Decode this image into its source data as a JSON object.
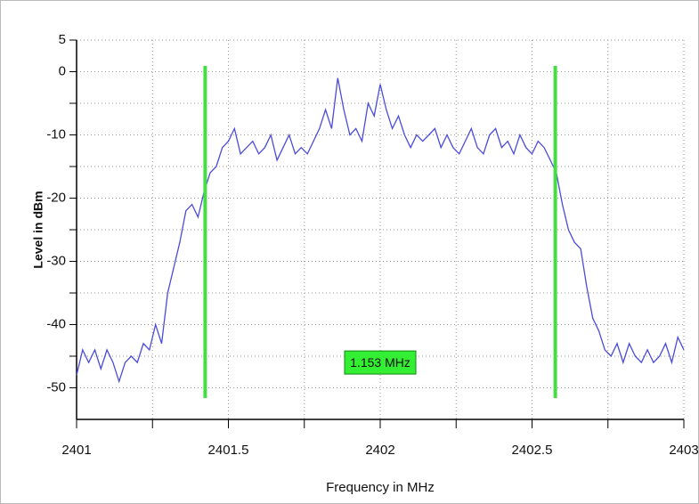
{
  "chart_data": {
    "type": "line",
    "x_label": "Frequency in MHz",
    "y_label": "Level in dBm",
    "x": [
      2401.0,
      2401.02,
      2401.04,
      2401.06,
      2401.08,
      2401.1,
      2401.12,
      2401.14,
      2401.16,
      2401.18,
      2401.2,
      2401.22,
      2401.24,
      2401.26,
      2401.28,
      2401.3,
      2401.32,
      2401.34,
      2401.36,
      2401.38,
      2401.4,
      2401.42,
      2401.44,
      2401.46,
      2401.48,
      2401.5,
      2401.52,
      2401.54,
      2401.56,
      2401.58,
      2401.6,
      2401.62,
      2401.64,
      2401.66,
      2401.68,
      2401.7,
      2401.72,
      2401.74,
      2401.76,
      2401.78,
      2401.8,
      2401.82,
      2401.84,
      2401.86,
      2401.88,
      2401.9,
      2401.92,
      2401.94,
      2401.96,
      2401.98,
      2402.0,
      2402.02,
      2402.04,
      2402.06,
      2402.08,
      2402.1,
      2402.12,
      2402.14,
      2402.16,
      2402.18,
      2402.2,
      2402.22,
      2402.24,
      2402.26,
      2402.28,
      2402.3,
      2402.32,
      2402.34,
      2402.36,
      2402.38,
      2402.4,
      2402.42,
      2402.44,
      2402.46,
      2402.48,
      2402.5,
      2402.52,
      2402.54,
      2402.56,
      2402.58,
      2402.6,
      2402.62,
      2402.64,
      2402.66,
      2402.68,
      2402.7,
      2402.72,
      2402.74,
      2402.76,
      2402.78,
      2402.8,
      2402.82,
      2402.84,
      2402.86,
      2402.88,
      2402.9,
      2402.92,
      2402.94,
      2402.96,
      2402.98,
      2403.0
    ],
    "series": [
      {
        "color": "#4b4bdc",
        "values": [
          -48,
          -44,
          -46,
          -44,
          -47,
          -44,
          -46,
          -49,
          -46,
          -45,
          -46,
          -43,
          -44,
          -40,
          -43,
          -35,
          -31,
          -27,
          -22,
          -21,
          -23,
          -19,
          -16,
          -15,
          -12,
          -11,
          -9,
          -13,
          -12,
          -11,
          -13,
          -12,
          -10,
          -14,
          -12,
          -10,
          -13,
          -12,
          -13,
          -11,
          -9,
          -6,
          -9,
          -1,
          -6,
          -10,
          -9,
          -11,
          -5,
          -7,
          -2,
          -6,
          -9,
          -7,
          -10,
          -12,
          -10,
          -11,
          -10,
          -9,
          -12,
          -10,
          -12,
          -13,
          -11,
          -9,
          -12,
          -13,
          -10,
          -9,
          -12,
          -11,
          -13,
          -10,
          -12,
          -13,
          -11,
          -12,
          -14,
          -16,
          -21,
          -25,
          -27,
          -28,
          -34,
          -39,
          -41,
          -44,
          -45,
          -43,
          -46,
          -43,
          -45,
          -46,
          -44,
          -46,
          -45,
          -43,
          -46,
          -42,
          -44
        ]
      }
    ],
    "xlim": [
      2401,
      2403
    ],
    "xticks": [
      2401,
      2401.5,
      2402,
      2402.5,
      2403
    ],
    "x_minor_ticks": [
      2401.25,
      2401.75,
      2402.25,
      2402.75
    ],
    "ylim": [
      -55,
      5
    ],
    "yticks": [
      5,
      0,
      -10,
      -20,
      -30,
      -40,
      -50
    ],
    "y_minor_ticks": [
      -5,
      -15,
      -25,
      -35,
      -45
    ],
    "grid": true,
    "markers": {
      "color": "#44dd44",
      "x": [
        2401.4235,
        2402.5765
      ]
    },
    "annotation": {
      "text": "1.153 MHz",
      "x": 2402,
      "y": -46
    }
  }
}
